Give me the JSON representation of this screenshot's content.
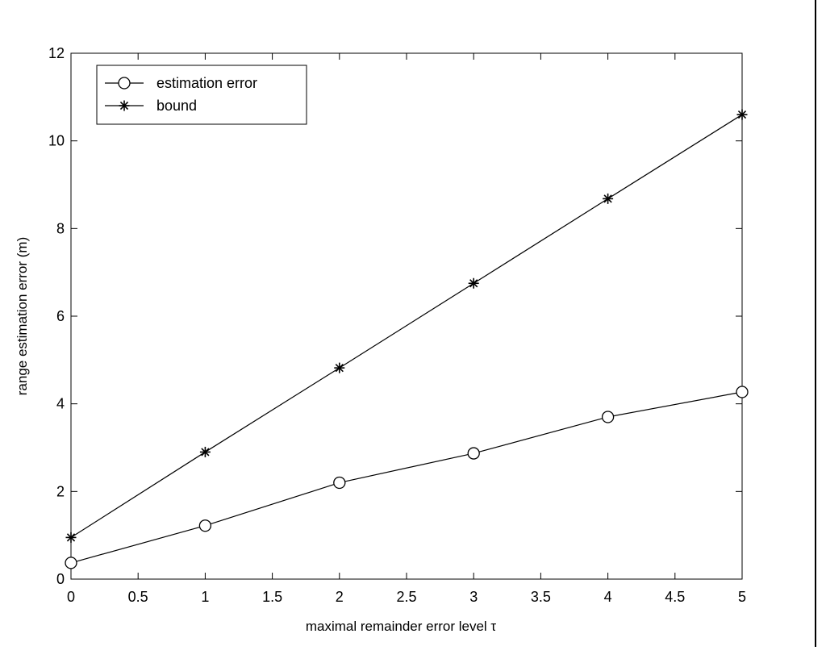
{
  "chart_data": {
    "type": "line",
    "title": "",
    "xlabel": "maximal remainder error level τ",
    "ylabel": "range estimation error (m)",
    "xlim": [
      0,
      5
    ],
    "ylim": [
      0,
      12
    ],
    "xticks": [
      0,
      0.5,
      1,
      1.5,
      2,
      2.5,
      3,
      3.5,
      4,
      4.5,
      5
    ],
    "yticks": [
      0,
      2,
      4,
      6,
      8,
      10,
      12
    ],
    "grid": false,
    "legend_position": "top-left",
    "x": [
      0,
      1,
      2,
      3,
      4,
      5
    ],
    "series": [
      {
        "name": "estimation error",
        "marker": "circle",
        "values": [
          0.37,
          1.22,
          2.2,
          2.87,
          3.7,
          4.27
        ]
      },
      {
        "name": "bound",
        "marker": "asterisk",
        "values": [
          0.95,
          2.9,
          4.82,
          6.75,
          8.68,
          10.6
        ]
      }
    ],
    "colors": {
      "line": "#000000",
      "axes": "#000000",
      "background": "#ffffff"
    }
  }
}
